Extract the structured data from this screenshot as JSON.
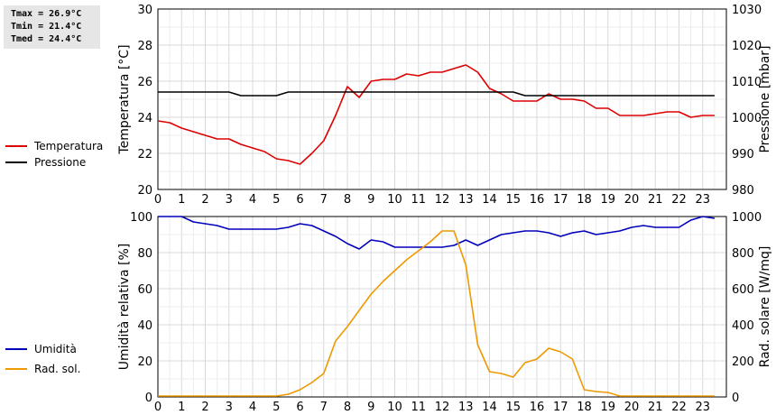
{
  "stats": {
    "tmax": "Tmax = 26.9°C",
    "tmin": "Tmin = 21.4°C",
    "tmed": "Tmed = 24.4°C"
  },
  "chart_data": [
    {
      "type": "line",
      "panel": "top",
      "grid": true,
      "xlim": [
        0,
        24
      ],
      "x_ticks": [
        0,
        1,
        2,
        3,
        4,
        5,
        6,
        7,
        8,
        9,
        10,
        11,
        12,
        13,
        14,
        15,
        16,
        17,
        18,
        19,
        20,
        21,
        22,
        23
      ],
      "left_axis": {
        "label": "Temperatura [°C]",
        "ylim": [
          20,
          30
        ],
        "ticks": [
          20,
          22,
          24,
          26,
          28,
          30
        ]
      },
      "right_axis": {
        "label": "Pressione [mbar]",
        "ylim": [
          980,
          1030
        ],
        "ticks": [
          980,
          990,
          1000,
          1010,
          1020,
          1030
        ]
      },
      "legend_position": "left",
      "series": [
        {
          "name": "Temperatura",
          "axis": "left",
          "color": "#dd0000",
          "x": [
            0,
            0.5,
            1,
            1.5,
            2,
            2.5,
            3,
            3.5,
            4,
            4.5,
            5,
            5.5,
            6,
            6.5,
            7,
            7.5,
            8,
            8.5,
            9,
            9.5,
            10,
            10.5,
            11,
            11.5,
            12,
            12.5,
            13,
            13.5,
            14,
            14.5,
            15,
            15.5,
            16,
            16.5,
            17,
            17.5,
            18,
            18.5,
            19,
            19.5,
            20,
            20.5,
            21,
            21.5,
            22,
            22.5,
            23,
            23.5
          ],
          "values": [
            23.8,
            23.7,
            23.4,
            23.2,
            23.0,
            22.8,
            22.8,
            22.5,
            22.3,
            22.1,
            21.7,
            21.6,
            21.4,
            22.0,
            22.7,
            24.1,
            25.7,
            25.1,
            26.0,
            26.1,
            26.1,
            26.4,
            26.3,
            26.5,
            26.5,
            26.7,
            26.9,
            26.5,
            25.6,
            25.3,
            24.9,
            24.9,
            24.9,
            25.3,
            25.0,
            25.0,
            24.9,
            24.5,
            24.5,
            24.1,
            24.1,
            24.1,
            24.2,
            24.3,
            24.3,
            24.0,
            24.1,
            24.1
          ]
        },
        {
          "name": "Pressione",
          "axis": "right",
          "color": "#000000",
          "x": [
            0,
            0.5,
            1,
            1.5,
            2,
            2.5,
            3,
            3.5,
            4,
            4.5,
            5,
            5.5,
            6,
            6.5,
            7,
            7.5,
            8,
            8.5,
            9,
            9.5,
            10,
            10.5,
            11,
            11.5,
            12,
            12.5,
            13,
            13.5,
            14,
            14.5,
            15,
            15.5,
            16,
            16.5,
            17,
            17.5,
            18,
            18.5,
            19,
            19.5,
            20,
            20.5,
            21,
            21.5,
            22,
            22.5,
            23,
            23.5
          ],
          "values": [
            1007,
            1007,
            1007,
            1007,
            1007,
            1007,
            1007,
            1006,
            1006,
            1006,
            1006,
            1007,
            1007,
            1007,
            1007,
            1007,
            1007,
            1007,
            1007,
            1007,
            1007,
            1007,
            1007,
            1007,
            1007,
            1007,
            1007,
            1007,
            1007,
            1007,
            1007,
            1006,
            1006,
            1006,
            1006,
            1006,
            1006,
            1006,
            1006,
            1006,
            1006,
            1006,
            1006,
            1006,
            1006,
            1006,
            1006,
            1006
          ]
        }
      ]
    },
    {
      "type": "line",
      "panel": "bottom",
      "grid": true,
      "xlim": [
        0,
        24
      ],
      "x_ticks": [
        0,
        1,
        2,
        3,
        4,
        5,
        6,
        7,
        8,
        9,
        10,
        11,
        12,
        13,
        14,
        15,
        16,
        17,
        18,
        19,
        20,
        21,
        22,
        23
      ],
      "left_axis": {
        "label": "Umidità relativa [%]",
        "ylim": [
          0,
          100
        ],
        "ticks": [
          0,
          20,
          40,
          60,
          80,
          100
        ]
      },
      "right_axis": {
        "label": "Rad. solare [W/mq]",
        "ylim": [
          0,
          1000
        ],
        "ticks": [
          0,
          200,
          400,
          600,
          800,
          1000
        ]
      },
      "legend_position": "left",
      "series": [
        {
          "name": "Umidità",
          "axis": "left",
          "color": "#0000bb",
          "x": [
            0,
            0.5,
            1,
            1.5,
            2,
            2.5,
            3,
            3.5,
            4,
            4.5,
            5,
            5.5,
            6,
            6.5,
            7,
            7.5,
            8,
            8.5,
            9,
            9.5,
            10,
            10.5,
            11,
            11.5,
            12,
            12.5,
            13,
            13.5,
            14,
            14.5,
            15,
            15.5,
            16,
            16.5,
            17,
            17.5,
            18,
            18.5,
            19,
            19.5,
            20,
            20.5,
            21,
            21.5,
            22,
            22.5,
            23,
            23.5
          ],
          "values": [
            100,
            100,
            100,
            97,
            96,
            95,
            93,
            93,
            93,
            93,
            93,
            94,
            96,
            95,
            92,
            89,
            85,
            82,
            87,
            86,
            83,
            83,
            83,
            83,
            83,
            84,
            87,
            84,
            87,
            90,
            91,
            92,
            92,
            91,
            89,
            91,
            92,
            90,
            91,
            92,
            94,
            95,
            94,
            94,
            94,
            98,
            100,
            99
          ]
        },
        {
          "name": "Rad. sol.",
          "axis": "right",
          "color": "#ee9900",
          "x": [
            0,
            0.5,
            1,
            1.5,
            2,
            2.5,
            3,
            3.5,
            4,
            4.5,
            5,
            5.5,
            6,
            6.5,
            7,
            7.5,
            8,
            8.5,
            9,
            9.5,
            10,
            10.5,
            11,
            11.5,
            12,
            12.5,
            13,
            13.5,
            14,
            14.5,
            15,
            15.5,
            16,
            16.5,
            17,
            17.5,
            18,
            18.5,
            19,
            19.5,
            20,
            20.5,
            21,
            21.5,
            22,
            22.5,
            23,
            23.5
          ],
          "values": [
            5,
            5,
            5,
            5,
            5,
            5,
            5,
            5,
            5,
            5,
            5,
            15,
            40,
            80,
            130,
            310,
            390,
            480,
            570,
            640,
            700,
            760,
            810,
            860,
            920,
            920,
            730,
            290,
            140,
            130,
            110,
            190,
            210,
            270,
            250,
            210,
            40,
            30,
            25,
            5,
            5,
            5,
            5,
            5,
            5,
            5,
            5,
            5
          ]
        }
      ]
    }
  ]
}
